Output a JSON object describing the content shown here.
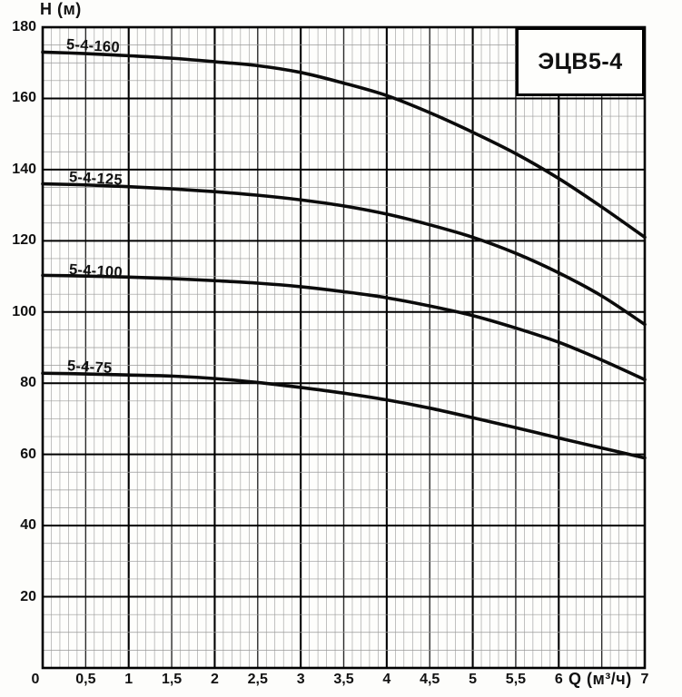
{
  "figure": {
    "kind": "pump performance curves",
    "title": "ЭЦВ5-4"
  },
  "chart_data": {
    "type": "line",
    "title": "ЭЦВ5-4",
    "xlabel": "Q (м³/ч)",
    "ylabel": "H (м)",
    "xlim": [
      0,
      7
    ],
    "ylim": [
      0,
      180
    ],
    "grid": {
      "on": true,
      "x_major_step": 0.5,
      "x_minor_step": 0.1,
      "x_emphasis_step": 1,
      "y_major_step": 20,
      "y_minor_step": 5
    },
    "legend_position": "labels-on-curves",
    "x_ticks": {
      "values": [
        0,
        0.5,
        1,
        1.5,
        2,
        2.5,
        3,
        3.5,
        4,
        4.5,
        5,
        5.5,
        6,
        7
      ],
      "labels": [
        "0",
        "0,5",
        "1",
        "1,5",
        "2",
        "2,5",
        "3",
        "3,5",
        "4",
        "4,5",
        "5",
        "5,5",
        "6",
        "7"
      ]
    },
    "y_ticks": {
      "values": [
        180,
        160,
        140,
        120,
        100,
        80,
        60,
        40,
        20
      ],
      "labels": [
        "180",
        "160",
        "140",
        "120",
        "100",
        "80",
        "60",
        "40",
        "20"
      ]
    },
    "x": [
      0,
      0.5,
      1,
      1.5,
      2,
      2.5,
      3,
      3.5,
      4,
      4.5,
      5,
      5.5,
      6,
      6.5,
      7
    ],
    "series": [
      {
        "name": "5-4-160",
        "values": [
          173,
          172.6,
          172,
          171.3,
          170.3,
          169.2,
          167.3,
          164.3,
          160.8,
          156,
          150.5,
          144.5,
          137.5,
          129.5,
          121
        ]
      },
      {
        "name": "5-4-125",
        "values": [
          136,
          135.7,
          135.2,
          134.6,
          133.8,
          132.8,
          131.5,
          129.8,
          127.5,
          124.5,
          121,
          116.5,
          111,
          104.5,
          96.5
        ]
      },
      {
        "name": "5-4-100",
        "values": [
          110.3,
          110.1,
          109.8,
          109.4,
          108.8,
          108.1,
          107.1,
          105.7,
          104,
          101.7,
          99,
          95.5,
          91.5,
          86.5,
          81
        ]
      },
      {
        "name": "5-4-75",
        "values": [
          82.8,
          82.6,
          82.3,
          82,
          81.3,
          80.2,
          78.8,
          77.2,
          75.3,
          73,
          70.3,
          67.5,
          64.6,
          61.8,
          59
        ]
      }
    ],
    "colors": {
      "curve": "#0b0b0b",
      "grid_minor": "#999999",
      "grid_major": "#2a2a2a",
      "grid_emphasis": "#000000",
      "border": "#000000",
      "plot_background": "#fefefc",
      "text": "#111111"
    }
  }
}
